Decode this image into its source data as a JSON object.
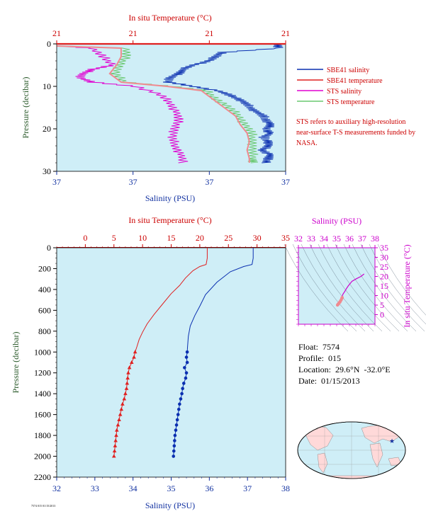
{
  "colors": {
    "plot_bg": "#cfeef7",
    "salinity": "#0a2fb0",
    "temperature": "#e02020",
    "sts_salinity": "#e000d0",
    "sts_temperature": "#6ac870",
    "sts_temp_pink": "#f08a90",
    "axis_blue": "#1030a0",
    "axis_red": "#cc0000",
    "axis_green": "#2a5a2a",
    "axis_magenta": "#cc00cc"
  },
  "top_panel": {
    "title_top": "In situ Temperature (°C)",
    "title_bottom": "Salinity (PSU)",
    "ylabel": "Pressure (decibar)",
    "top_ticks": [
      "21",
      "21",
      "21",
      "21"
    ],
    "bottom_ticks": [
      "37",
      "37",
      "37",
      "37"
    ],
    "y_ticks": [
      "0",
      "10",
      "20",
      "30"
    ],
    "legend": [
      {
        "label": "SBE41 salinity",
        "color": "#0a2fb0"
      },
      {
        "label": "SBE41 temperature",
        "color": "#e02020"
      },
      {
        "label": "STS salinity",
        "color": "#e000d0"
      },
      {
        "label": "STS temperature",
        "color": "#6ac870"
      }
    ],
    "note": "STS refers to auxiliary high-resolution near-surface T-S measurements funded by NASA."
  },
  "main_panel": {
    "title_top": "In situ Temperature (°C)",
    "title_bottom": "Salinity (PSU)",
    "ylabel": "Pressure (decibar)",
    "top_ticks": [
      "0",
      "5",
      "10",
      "15",
      "20",
      "25",
      "30",
      "35"
    ],
    "bottom_ticks": [
      "32",
      "33",
      "34",
      "35",
      "36",
      "37",
      "38"
    ],
    "y_ticks": [
      "0",
      "200",
      "400",
      "600",
      "800",
      "1000",
      "1200",
      "1400",
      "1600",
      "1800",
      "2000",
      "2200"
    ]
  },
  "ts_panel": {
    "title_top": "Salinity (PSU)",
    "ylabel": "In situ Temperature (°C)",
    "top_ticks": [
      "32",
      "33",
      "34",
      "35",
      "36",
      "37",
      "38"
    ],
    "right_ticks": [
      "0",
      "5",
      "10",
      "15",
      "20",
      "25",
      "30",
      "35"
    ]
  },
  "info": {
    "float": "Float:  7574",
    "profile": "Profile:  015",
    "location": "Location:  29.6°N  -32.0°E",
    "date": "Date:  01/15/2013"
  },
  "footer_text": "7574 015 01/15/2013",
  "chart_data": [
    {
      "type": "line",
      "title": "",
      "xlabel": "Salinity (PSU)",
      "x2label": "In situ Temperature (°C)",
      "ylabel": "Pressure (decibar)",
      "xlim": [
        32,
        38
      ],
      "x2lim": [
        -5,
        35
      ],
      "ylim": [
        2200,
        0
      ],
      "series": [
        {
          "name": "salinity",
          "axis": "salinity",
          "points": [
            [
              37.15,
              0
            ],
            [
              37.15,
              100
            ],
            [
              37.12,
              160
            ],
            [
              36.9,
              180
            ],
            [
              36.55,
              230
            ],
            [
              36.2,
              330
            ],
            [
              35.9,
              450
            ],
            [
              35.75,
              560
            ],
            [
              35.62,
              650
            ],
            [
              35.5,
              750
            ],
            [
              35.45,
              850
            ],
            [
              35.43,
              950
            ],
            [
              35.42,
              1000
            ],
            [
              35.4,
              1050
            ],
            [
              35.42,
              1100
            ],
            [
              35.35,
              1150
            ],
            [
              35.4,
              1200
            ],
            [
              35.38,
              1250
            ],
            [
              35.33,
              1300
            ],
            [
              35.3,
              1350
            ],
            [
              35.28,
              1400
            ],
            [
              35.25,
              1450
            ],
            [
              35.22,
              1500
            ],
            [
              35.2,
              1550
            ],
            [
              35.18,
              1600
            ],
            [
              35.16,
              1650
            ],
            [
              35.14,
              1700
            ],
            [
              35.12,
              1750
            ],
            [
              35.1,
              1800
            ],
            [
              35.09,
              1850
            ],
            [
              35.08,
              1900
            ],
            [
              35.07,
              1950
            ],
            [
              35.06,
              2000
            ]
          ],
          "markers_from_pressure": 1000
        },
        {
          "name": "temperature",
          "axis": "temperature",
          "points": [
            [
              21.3,
              0
            ],
            [
              21.3,
              100
            ],
            [
              21.1,
              160
            ],
            [
              20.0,
              180
            ],
            [
              18.8,
              220
            ],
            [
              17.5,
              290
            ],
            [
              16.5,
              360
            ],
            [
              15.0,
              440
            ],
            [
              13.5,
              540
            ],
            [
              12.0,
              640
            ],
            [
              10.8,
              730
            ],
            [
              10.0,
              810
            ],
            [
              9.4,
              880
            ],
            [
              9.0,
              950
            ],
            [
              8.7,
              1000
            ],
            [
              8.5,
              1050
            ],
            [
              8.1,
              1100
            ],
            [
              7.7,
              1150
            ],
            [
              7.5,
              1200
            ],
            [
              7.4,
              1250
            ],
            [
              7.3,
              1300
            ],
            [
              7.2,
              1350
            ],
            [
              7.0,
              1400
            ],
            [
              6.8,
              1450
            ],
            [
              6.5,
              1500
            ],
            [
              6.3,
              1550
            ],
            [
              6.1,
              1600
            ],
            [
              5.9,
              1650
            ],
            [
              5.7,
              1700
            ],
            [
              5.5,
              1750
            ],
            [
              5.4,
              1800
            ],
            [
              5.3,
              1850
            ],
            [
              5.2,
              1900
            ],
            [
              5.1,
              1950
            ],
            [
              5.0,
              2000
            ]
          ],
          "markers_from_pressure": 1000
        }
      ]
    },
    {
      "type": "line",
      "title": "",
      "xlabel": "Salinity (PSU)",
      "ylabel": "Pressure (decibar)",
      "ylim": [
        30,
        0
      ],
      "x_ticks_repeat": "37",
      "x2_ticks_repeat": "21",
      "series": [
        {
          "name": "SBE41 salinity",
          "points": [
            [
              0.97,
              0
            ],
            [
              0.97,
              1
            ],
            [
              0.72,
              2
            ],
            [
              0.7,
              3
            ],
            [
              0.66,
              4
            ],
            [
              0.6,
              5
            ],
            [
              0.55,
              6
            ],
            [
              0.53,
              7
            ],
            [
              0.5,
              8
            ],
            [
              0.48,
              9
            ],
            [
              0.6,
              10
            ],
            [
              0.7,
              11
            ],
            [
              0.75,
              12
            ],
            [
              0.8,
              13
            ],
            [
              0.82,
              14
            ],
            [
              0.85,
              15
            ],
            [
              0.87,
              16
            ],
            [
              0.9,
              17
            ],
            [
              0.92,
              18
            ],
            [
              0.93,
              19
            ],
            [
              0.92,
              20
            ],
            [
              0.93,
              21
            ],
            [
              0.9,
              22
            ],
            [
              0.93,
              23
            ],
            [
              0.92,
              24
            ],
            [
              0.9,
              25
            ],
            [
              0.93,
              26
            ],
            [
              0.92,
              27
            ],
            [
              0.92,
              28
            ]
          ]
        },
        {
          "name": "SBE41 temperature",
          "points": [
            [
              0.02,
              0
            ]
          ]
        },
        {
          "name": "STS salinity",
          "points": [
            [
              0.02,
              0.5
            ],
            [
              0.15,
              1
            ],
            [
              0.2,
              3
            ],
            [
              0.25,
              5
            ],
            [
              0.15,
              6
            ],
            [
              0.12,
              7
            ],
            [
              0.1,
              8
            ],
            [
              0.15,
              9
            ],
            [
              0.35,
              10
            ],
            [
              0.45,
              12
            ],
            [
              0.5,
              14
            ],
            [
              0.52,
              16
            ],
            [
              0.53,
              18
            ],
            [
              0.52,
              20
            ],
            [
              0.5,
              22
            ],
            [
              0.52,
              24
            ],
            [
              0.54,
              26
            ],
            [
              0.55,
              28
            ]
          ]
        },
        {
          "name": "STS temperature",
          "points": [
            [
              0.02,
              0.5
            ],
            [
              0.3,
              1
            ],
            [
              0.3,
              3
            ],
            [
              0.28,
              5
            ],
            [
              0.25,
              7
            ],
            [
              0.3,
              9
            ],
            [
              0.5,
              10
            ],
            [
              0.65,
              11
            ],
            [
              0.7,
              13
            ],
            [
              0.75,
              15
            ],
            [
              0.8,
              17
            ],
            [
              0.82,
              19
            ],
            [
              0.85,
              21
            ],
            [
              0.86,
              23
            ],
            [
              0.85,
              25
            ],
            [
              0.86,
              27
            ],
            [
              0.86,
              28
            ]
          ]
        }
      ]
    },
    {
      "type": "scatter",
      "title": "",
      "xlabel": "Salinity (PSU)",
      "ylabel": "In situ Temperature (°C)",
      "xlim": [
        32,
        38
      ],
      "ylim": [
        -5,
        35
      ],
      "series": [
        {
          "name": "T-S",
          "points": [
            [
              37.15,
              21.3
            ],
            [
              36.9,
              20.0
            ],
            [
              36.55,
              18.8
            ],
            [
              36.2,
              17.5
            ],
            [
              35.9,
              15.0
            ],
            [
              35.75,
              13.5
            ],
            [
              35.62,
              12.0
            ],
            [
              35.5,
              10.8
            ],
            [
              35.45,
              10.0
            ],
            [
              35.43,
              9.0
            ],
            [
              35.42,
              8.7
            ],
            [
              35.4,
              8.5
            ],
            [
              35.35,
              7.7
            ],
            [
              35.3,
              7.2
            ],
            [
              35.25,
              6.5
            ],
            [
              35.2,
              6.3
            ],
            [
              35.16,
              5.9
            ],
            [
              35.12,
              5.5
            ],
            [
              35.1,
              5.4
            ],
            [
              35.08,
              5.2
            ],
            [
              35.06,
              5.0
            ]
          ]
        }
      ]
    }
  ]
}
